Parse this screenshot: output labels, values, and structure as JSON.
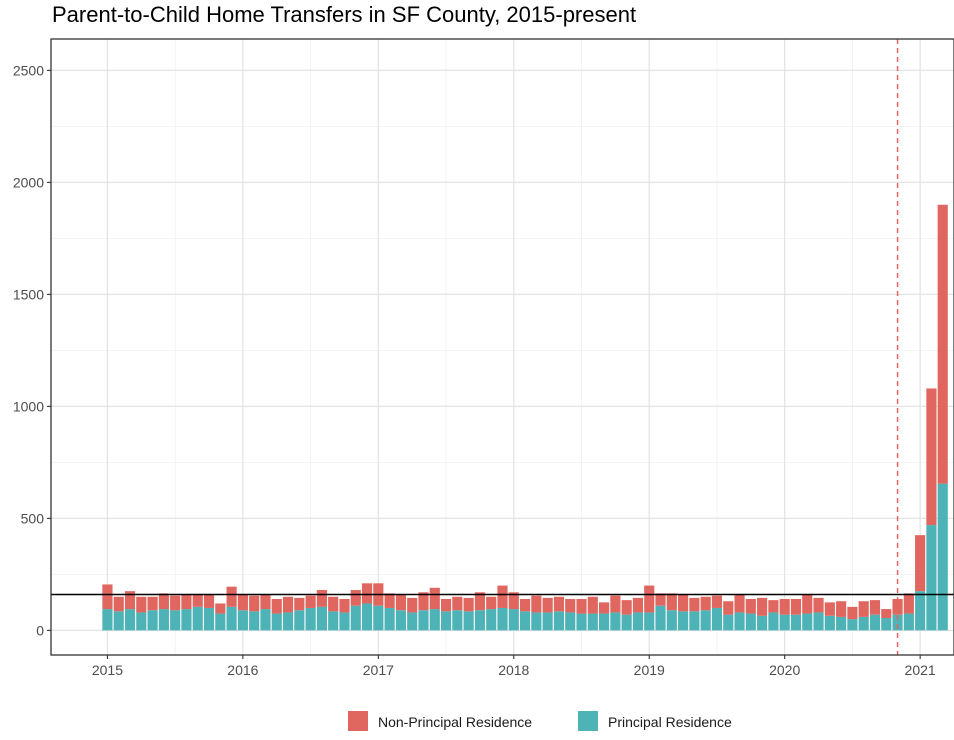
{
  "chart_data": {
    "type": "bar",
    "stacked": true,
    "title": "Parent-to-Child Home Transfers in SF County, 2015-present",
    "xlabel": "",
    "ylabel": "",
    "ylim": [
      -110,
      2640
    ],
    "y_ticks": [
      0,
      500,
      1000,
      1500,
      2000,
      2500
    ],
    "x_ticks": [
      "2015",
      "2016",
      "2017",
      "2018",
      "2019",
      "2020",
      "2021"
    ],
    "x_range_start": "2014-08",
    "x_range_end": "2021-04",
    "categories": [
      "2015-01",
      "2015-02",
      "2015-03",
      "2015-04",
      "2015-05",
      "2015-06",
      "2015-07",
      "2015-08",
      "2015-09",
      "2015-10",
      "2015-11",
      "2015-12",
      "2016-01",
      "2016-02",
      "2016-03",
      "2016-04",
      "2016-05",
      "2016-06",
      "2016-07",
      "2016-08",
      "2016-09",
      "2016-10",
      "2016-11",
      "2016-12",
      "2017-01",
      "2017-02",
      "2017-03",
      "2017-04",
      "2017-05",
      "2017-06",
      "2017-07",
      "2017-08",
      "2017-09",
      "2017-10",
      "2017-11",
      "2017-12",
      "2018-01",
      "2018-02",
      "2018-03",
      "2018-04",
      "2018-05",
      "2018-06",
      "2018-07",
      "2018-08",
      "2018-09",
      "2018-10",
      "2018-11",
      "2018-12",
      "2019-01",
      "2019-02",
      "2019-03",
      "2019-04",
      "2019-05",
      "2019-06",
      "2019-07",
      "2019-08",
      "2019-09",
      "2019-10",
      "2019-11",
      "2019-12",
      "2020-01",
      "2020-02",
      "2020-03",
      "2020-04",
      "2020-05",
      "2020-06",
      "2020-07",
      "2020-08",
      "2020-09",
      "2020-10",
      "2020-11",
      "2020-12",
      "2021-01",
      "2021-02",
      "2021-03"
    ],
    "series": [
      {
        "name": "Principal Residence",
        "color": "#4db3b6",
        "values": [
          95,
          85,
          95,
          80,
          90,
          95,
          90,
          95,
          105,
          100,
          75,
          105,
          90,
          85,
          95,
          75,
          80,
          90,
          100,
          105,
          85,
          80,
          110,
          120,
          110,
          100,
          90,
          80,
          90,
          95,
          85,
          90,
          85,
          90,
          95,
          100,
          95,
          85,
          80,
          80,
          85,
          80,
          75,
          75,
          75,
          80,
          70,
          80,
          80,
          110,
          90,
          85,
          85,
          90,
          100,
          70,
          80,
          75,
          65,
          80,
          70,
          70,
          75,
          80,
          65,
          60,
          50,
          60,
          70,
          55,
          70,
          75,
          175,
          470,
          655
        ]
      },
      {
        "name": "Non-Principal Residence",
        "color": "#e06660",
        "values": [
          110,
          65,
          80,
          70,
          60,
          70,
          65,
          65,
          55,
          60,
          45,
          90,
          70,
          70,
          65,
          65,
          70,
          55,
          55,
          75,
          65,
          60,
          70,
          90,
          100,
          65,
          70,
          65,
          80,
          95,
          55,
          60,
          60,
          80,
          55,
          100,
          75,
          55,
          75,
          65,
          65,
          60,
          65,
          75,
          50,
          75,
          65,
          65,
          120,
          55,
          75,
          75,
          60,
          60,
          55,
          60,
          80,
          65,
          80,
          55,
          70,
          70,
          85,
          65,
          60,
          70,
          55,
          70,
          65,
          40,
          70,
          90,
          250,
          610,
          1245
        ]
      }
    ],
    "reference_lines": [
      {
        "type": "horizontal",
        "y": 160,
        "color": "#000000",
        "style": "solid"
      },
      {
        "type": "vertical",
        "x": "2020-11",
        "color": "#e06660",
        "style": "dashed"
      }
    ],
    "grid": true,
    "legend_position": "bottom",
    "legend_order": [
      "Non-Principal Residence",
      "Principal Residence"
    ]
  }
}
